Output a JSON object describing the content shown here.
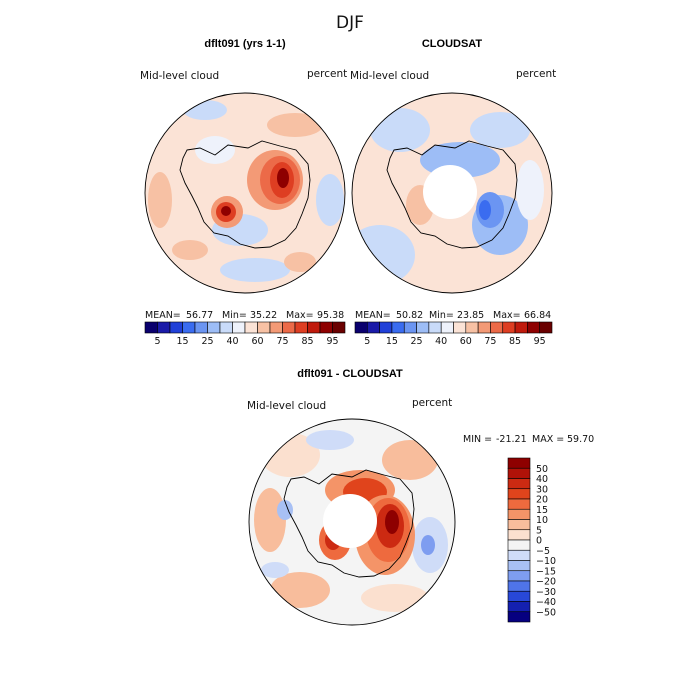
{
  "season": "DJF",
  "panels": {
    "model": {
      "title": "dflt091 (yrs 1-1)",
      "variable": "Mid-level cloud",
      "units": "percent",
      "stats": {
        "mean_label": "MEAN=",
        "mean": "56.77",
        "min_label": "Min=",
        "min": "35.22",
        "max_label": "Max=",
        "max": "95.38"
      }
    },
    "obs": {
      "title": "CLOUDSAT",
      "variable": "Mid-level cloud",
      "units": "percent",
      "stats": {
        "mean_label": "MEAN=",
        "mean": "50.82",
        "min_label": "Min=",
        "min": "23.85",
        "max_label": "Max=",
        "max": "66.84"
      }
    },
    "diff": {
      "title": "dflt091 - CLOUDSAT",
      "variable": "Mid-level cloud",
      "units": "percent",
      "stats": {
        "min_label": "MIN =",
        "min": "-21.21",
        "max_label": "MAX =",
        "max": "59.70"
      }
    }
  },
  "colorbars": {
    "abs": {
      "levels": [
        5,
        10,
        15,
        20,
        25,
        30,
        40,
        50,
        60,
        65,
        75,
        80,
        85,
        90,
        95
      ],
      "tick_labels": [
        "5",
        "15",
        "25",
        "40",
        "60",
        "75",
        "85",
        "95"
      ],
      "colors": [
        "#0a006e",
        "#1a1aa8",
        "#2040d8",
        "#3a6cf0",
        "#6b95f2",
        "#9dbdf6",
        "#c9dbf9",
        "#eef2fb",
        "#fbe3d6",
        "#f7c1a4",
        "#f39a76",
        "#ec6a48",
        "#de3e22",
        "#c01a0c",
        "#8e0000",
        "#6a0000"
      ]
    },
    "diff": {
      "levels": [
        -50,
        -40,
        -30,
        -20,
        -15,
        -10,
        -5,
        0,
        5,
        10,
        15,
        20,
        30,
        40,
        50
      ],
      "tick_labels": [
        "50",
        "40",
        "30",
        "20",
        "15",
        "10",
        "5",
        "0",
        "−5",
        "−10",
        "−15",
        "−20",
        "−30",
        "−40",
        "−50"
      ],
      "colors": [
        "#8e0000",
        "#b01208",
        "#cc2a12",
        "#e0441c",
        "#ee6a3e",
        "#f49468",
        "#f8bd9c",
        "#fbe0cf",
        "#f4f4f4",
        "#cfdcf8",
        "#a8c0f4",
        "#7e9df0",
        "#4f74e8",
        "#2848d8",
        "#1420b0",
        "#060080"
      ]
    }
  },
  "map_colors": {
    "land_outline": "#000000",
    "mask": "#ffffff"
  }
}
